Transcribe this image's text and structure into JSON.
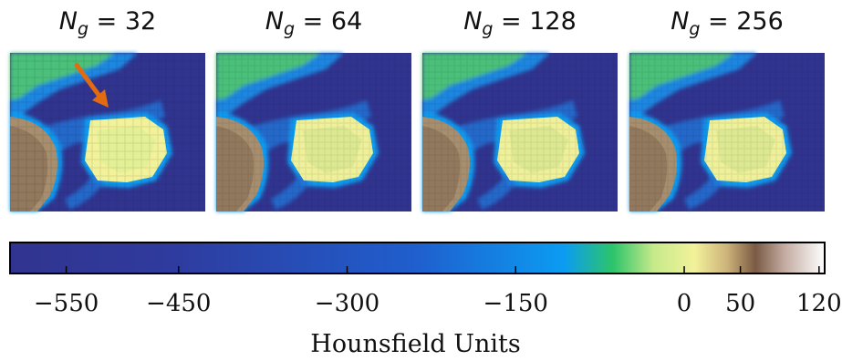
{
  "panels": [
    {
      "label_symbol": "N",
      "label_subscript": "g",
      "label_rest": " = 32"
    },
    {
      "label_symbol": "N",
      "label_subscript": "g",
      "label_rest": " = 64"
    },
    {
      "label_symbol": "N",
      "label_subscript": "g",
      "label_rest": " = 128"
    },
    {
      "label_symbol": "N",
      "label_subscript": "g",
      "label_rest": " = 256"
    }
  ],
  "colorbar": {
    "label": "Hounsfield Units",
    "min": -600,
    "max": 125,
    "ticks": [
      {
        "value": -550,
        "label": "−550"
      },
      {
        "value": -450,
        "label": "−450"
      },
      {
        "value": -300,
        "label": "−300"
      },
      {
        "value": -150,
        "label": "−150"
      },
      {
        "value": 0,
        "label": "0"
      },
      {
        "value": 50,
        "label": "50"
      },
      {
        "value": 120,
        "label": "120"
      }
    ],
    "colors": [
      "#31348f",
      "#2f3b9e",
      "#1f74d8",
      "#0b9cf2",
      "#2cc46a",
      "#c6ea8a",
      "#f2f29a",
      "#cdb37a",
      "#7a5a44",
      "#c2aaa0",
      "#ffffff"
    ]
  },
  "arrow_color": "#e26a10"
}
